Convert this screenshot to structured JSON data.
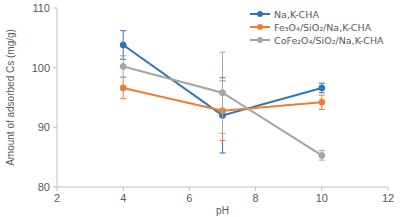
{
  "chart_data": {
    "type": "line",
    "x_label": "pH",
    "y_label": "Amount of adsorbed Cs (mg/g)",
    "x": [
      4,
      7,
      10
    ],
    "xlim": [
      2,
      12
    ],
    "xticks": [
      2,
      4,
      6,
      8,
      10,
      12
    ],
    "ylim": [
      80,
      110
    ],
    "yticks": [
      80,
      90,
      100,
      110
    ],
    "grid": false,
    "legend": "upper right",
    "marker": "circle",
    "series": [
      {
        "name": "Na,K-CHA",
        "color": "#2e75b6",
        "values": [
          103.8,
          92.0,
          96.6
        ],
        "errors": [
          2.4,
          6.3,
          0.8
        ]
      },
      {
        "name": "Fe₃O₄/SiO₂/Na,K-CHA",
        "color": "#ed7d31",
        "values": [
          96.6,
          92.8,
          94.2
        ],
        "errors": [
          1.8,
          5.0,
          1.2
        ]
      },
      {
        "name": "CoFe₂O₄/SiO₂/Na,K-CHA",
        "color": "#a5a5a5",
        "values": [
          100.2,
          95.8,
          85.3
        ],
        "errors": [
          1.8,
          6.8,
          0.8
        ]
      }
    ]
  }
}
